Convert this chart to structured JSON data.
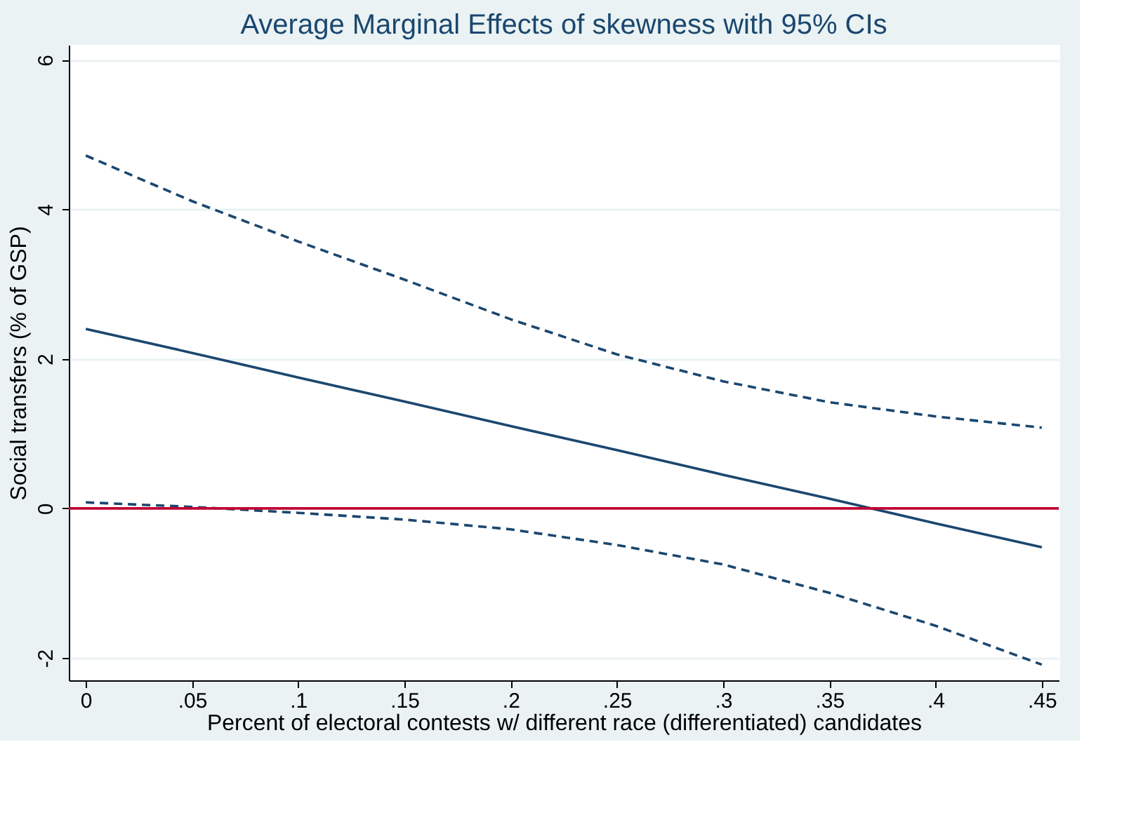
{
  "chart_data": {
    "type": "line",
    "title": "Average Marginal Effects of skewness with 95% CIs",
    "xlabel": "Percent of electoral contests w/ different race (differentiated) candidates",
    "ylabel": "Social transfers (% of GSP)",
    "x": [
      0,
      0.05,
      0.1,
      0.15,
      0.2,
      0.25,
      0.3,
      0.35,
      0.4,
      0.45
    ],
    "series": [
      {
        "color": "#1a476f",
        "line_style": "solid",
        "values": [
          2.4,
          2.08,
          1.75,
          1.43,
          1.1,
          0.78,
          0.45,
          0.13,
          -0.2,
          -0.52
        ]
      },
      {
        "color": "#1a476f",
        "line_style": "dashed",
        "values": [
          4.72,
          4.11,
          3.57,
          3.06,
          2.53,
          2.06,
          1.7,
          1.42,
          1.23,
          1.08
        ]
      },
      {
        "color": "#1a476f",
        "line_style": "dashed",
        "values": [
          0.08,
          0.02,
          -0.06,
          -0.15,
          -0.28,
          -0.49,
          -0.75,
          -1.13,
          -1.57,
          -2.09
        ]
      }
    ],
    "xlim": [
      -0.008,
      0.458
    ],
    "ylim": [
      -2.3,
      6.2
    ],
    "xticks": [
      0,
      {
        "value": 0.05,
        "label": ".05"
      },
      {
        "value": 0.1,
        "label": ".1"
      },
      {
        "value": 0.15,
        "label": ".15"
      },
      {
        "value": 0.2,
        "label": ".2"
      },
      {
        "value": 0.25,
        "label": ".25"
      },
      {
        "value": 0.3,
        "label": ".3"
      },
      {
        "value": 0.35,
        "label": ".35"
      },
      {
        "value": 0.4,
        "label": ".4"
      },
      {
        "value": 0.45,
        "label": ".45"
      }
    ],
    "yticks": [
      -2,
      0,
      2,
      4,
      6
    ],
    "ref_lines": [
      {
        "axis": "y",
        "value": 0,
        "color": "#c10534"
      }
    ],
    "grid": "y",
    "marker": "none"
  }
}
